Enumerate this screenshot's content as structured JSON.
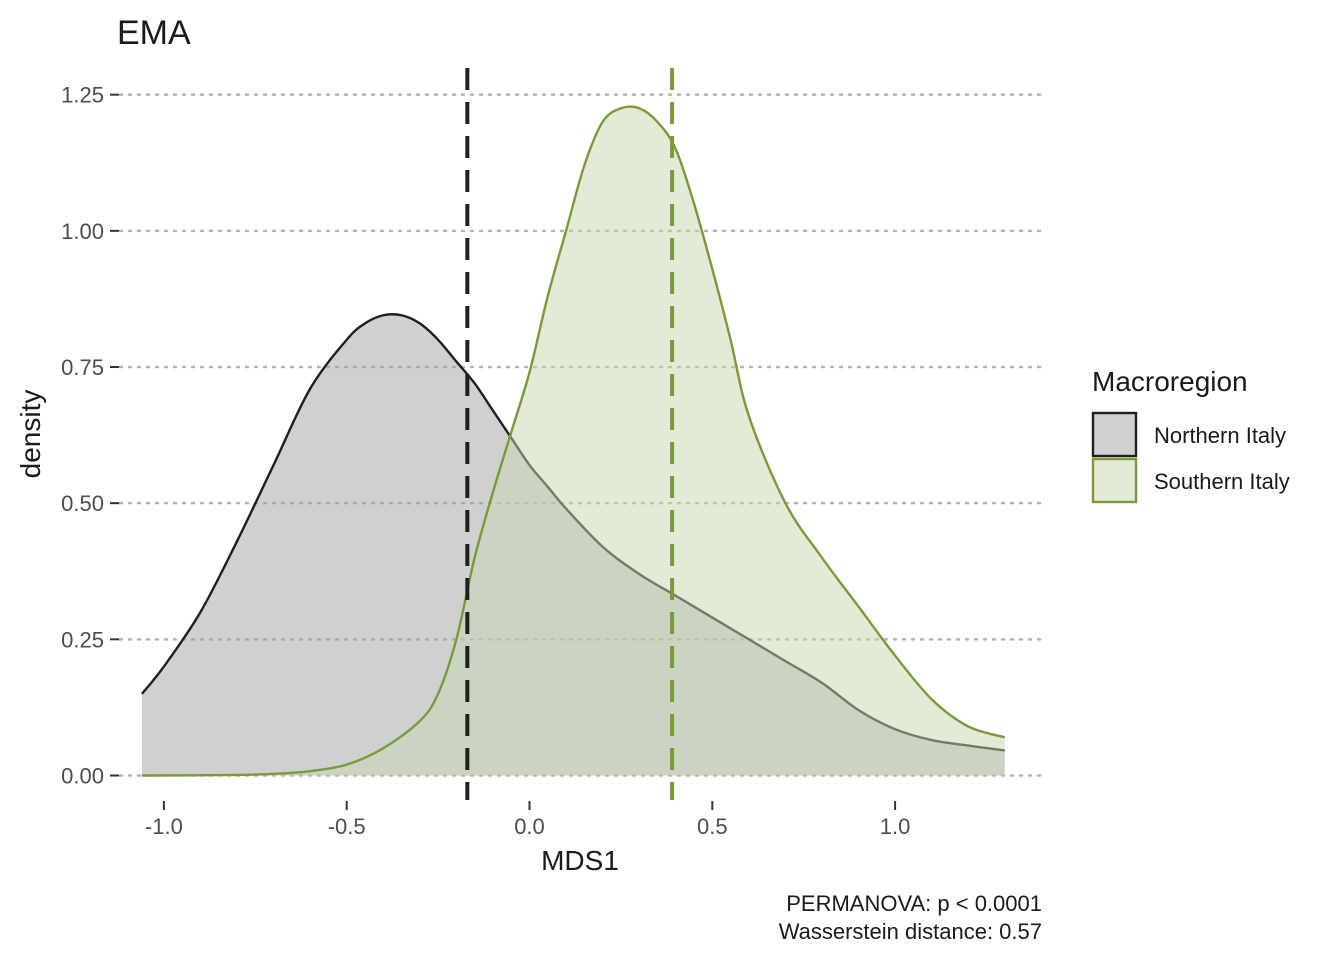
{
  "chart_data": {
    "type": "area",
    "title": "EMA",
    "xlabel": "MDS1",
    "ylabel": "density",
    "xlim": [
      -1.12,
      1.41
    ],
    "ylim": [
      -0.045,
      1.31
    ],
    "x_ticks": [
      -1.0,
      -0.5,
      0.0,
      0.5,
      1.0
    ],
    "x_tick_labels": [
      "-1.0",
      "-0.5",
      "0.0",
      "0.5",
      "1.0"
    ],
    "y_ticks": [
      0.0,
      0.25,
      0.5,
      0.75,
      1.0,
      1.25
    ],
    "y_tick_labels": [
      "0.00",
      "0.25",
      "0.50",
      "0.75",
      "1.00",
      "1.25"
    ],
    "grid": "horizontal dotted",
    "legend": {
      "title": "Macroregion",
      "position": "right",
      "entries": [
        "Northern Italy",
        "Southern Italy"
      ]
    },
    "series": [
      {
        "name": "Northern Italy",
        "line_color": "#1f1f1f",
        "fill_color": "#9fa3a3",
        "mean_line_x": -0.17,
        "x": [
          -1.06,
          -1.0,
          -0.9,
          -0.8,
          -0.7,
          -0.6,
          -0.5,
          -0.45,
          -0.4,
          -0.35,
          -0.3,
          -0.25,
          -0.2,
          -0.15,
          -0.1,
          -0.05,
          0.0,
          0.05,
          0.1,
          0.2,
          0.3,
          0.4,
          0.5,
          0.6,
          0.7,
          0.8,
          0.9,
          1.0,
          1.1,
          1.2,
          1.3
        ],
        "y": [
          0.15,
          0.2,
          0.3,
          0.43,
          0.57,
          0.71,
          0.8,
          0.83,
          0.845,
          0.845,
          0.83,
          0.8,
          0.76,
          0.72,
          0.67,
          0.62,
          0.57,
          0.53,
          0.49,
          0.42,
          0.37,
          0.33,
          0.29,
          0.25,
          0.21,
          0.17,
          0.12,
          0.085,
          0.065,
          0.055,
          0.046
        ]
      },
      {
        "name": "Southern Italy",
        "line_color": "#7a9a3a",
        "fill_color": "#c8d8b0",
        "mean_line_x": 0.39,
        "x": [
          -1.06,
          -0.8,
          -0.7,
          -0.6,
          -0.5,
          -0.4,
          -0.3,
          -0.25,
          -0.2,
          -0.15,
          -0.1,
          -0.05,
          0.0,
          0.05,
          0.1,
          0.15,
          0.2,
          0.25,
          0.3,
          0.35,
          0.4,
          0.45,
          0.5,
          0.55,
          0.6,
          0.7,
          0.8,
          0.9,
          1.0,
          1.1,
          1.2,
          1.3
        ],
        "y": [
          0.0,
          0.001,
          0.003,
          0.008,
          0.02,
          0.05,
          0.1,
          0.15,
          0.25,
          0.4,
          0.52,
          0.63,
          0.74,
          0.88,
          1.0,
          1.12,
          1.2,
          1.225,
          1.225,
          1.2,
          1.15,
          1.05,
          0.93,
          0.8,
          0.66,
          0.5,
          0.4,
          0.31,
          0.22,
          0.14,
          0.09,
          0.07
        ]
      }
    ],
    "annotations": [
      "PERMANOVA: p < 0.0001",
      "Wasserstein distance: 0.57"
    ]
  }
}
